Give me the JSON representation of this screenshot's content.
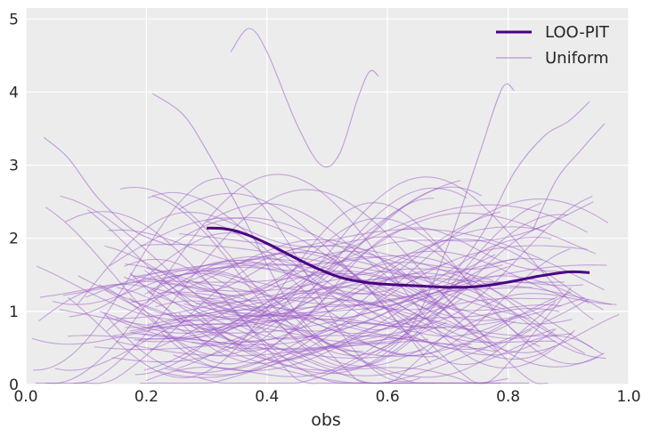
{
  "chart_data": {
    "type": "line",
    "title": "",
    "xlabel": "obs",
    "ylabel": "",
    "xlim": [
      0.0,
      1.0
    ],
    "ylim": [
      0,
      5.15
    ],
    "x_ticks": [
      "0.0",
      "0.2",
      "0.4",
      "0.6",
      "0.8",
      "1.0"
    ],
    "y_ticks": [
      "0",
      "1",
      "2",
      "3",
      "4",
      "5"
    ],
    "grid": true,
    "legend": {
      "placement": "top-right",
      "entries": [
        "LOO-PIT",
        "Uniform"
      ]
    },
    "colors": {
      "loo_pit": "#4b0082",
      "uniform": "#9b59c8",
      "background": "#ececec",
      "grid": "#ffffff"
    },
    "series": [
      {
        "name": "LOO-PIT",
        "x": [
          0.3,
          0.33,
          0.36,
          0.4,
          0.44,
          0.48,
          0.52,
          0.56,
          0.6,
          0.65,
          0.7,
          0.75,
          0.8,
          0.85,
          0.9,
          0.935
        ],
        "y": [
          2.14,
          2.13,
          2.07,
          1.93,
          1.76,
          1.6,
          1.47,
          1.4,
          1.37,
          1.35,
          1.33,
          1.34,
          1.4,
          1.48,
          1.54,
          1.53
        ]
      }
    ],
    "uniform_samples": 100
  }
}
